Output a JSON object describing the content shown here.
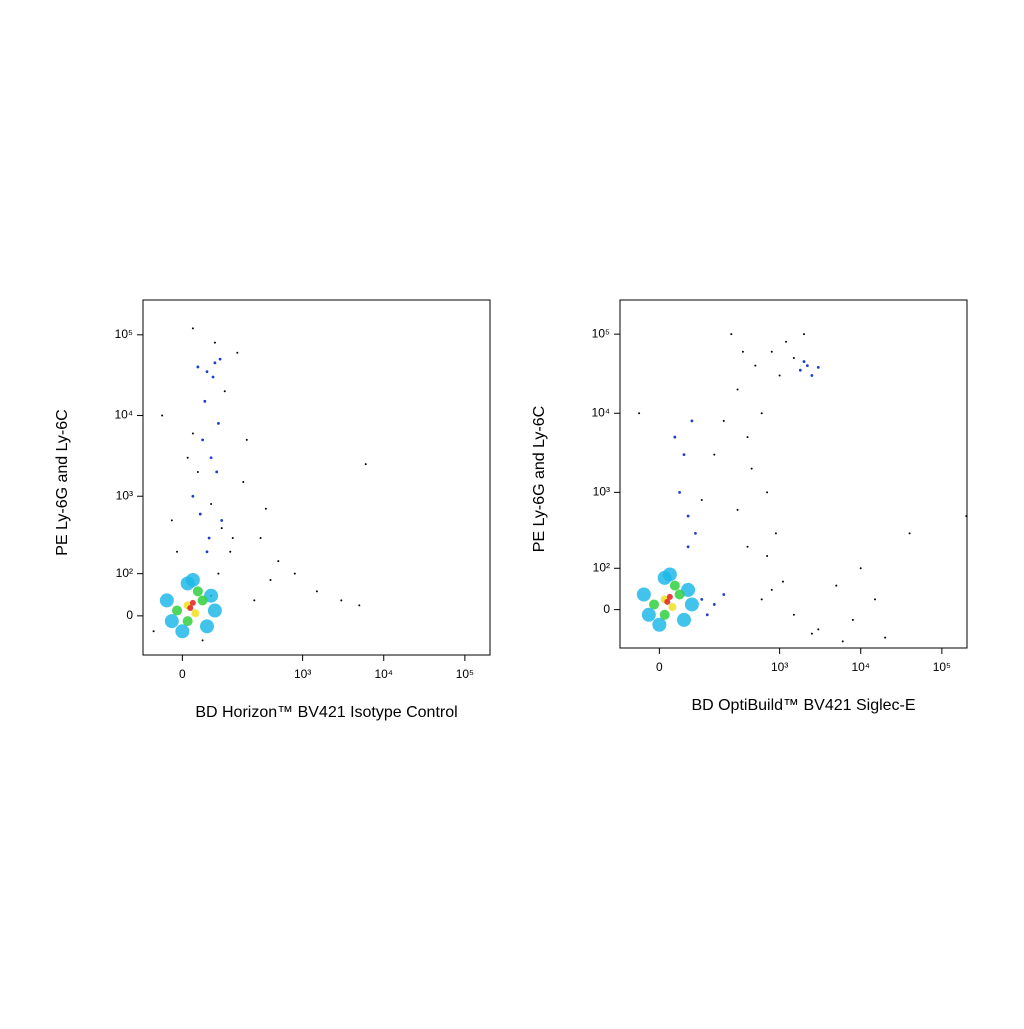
{
  "chart_data": [
    {
      "type": "scatter",
      "xscale": "biexponential",
      "yscale": "biexponential",
      "x_label": "BD Horizon™ BV421 Isotype Control",
      "y_label": "PE Ly-6G and Ly-6C",
      "xlim": [
        -90,
        204000
      ],
      "ylim": [
        -90,
        270000
      ],
      "xticks": [
        0,
        {
          "value": 1000,
          "label": "10³"
        },
        {
          "value": 10000,
          "label": "10⁴"
        },
        {
          "value": 100000,
          "label": "10⁵"
        }
      ],
      "yticks": [
        0,
        {
          "value": 100,
          "label": "10²"
        },
        {
          "value": 1000,
          "label": "10³"
        },
        {
          "value": 10000,
          "label": "10⁴"
        },
        {
          "value": 100000,
          "label": "10⁵"
        }
      ],
      "series": [
        {
          "color": "#000000",
          "x": [
            -40,
            10,
            60,
            120,
            200,
            300,
            500,
            800,
            1500,
            3000,
            6000,
            -20,
            30,
            90,
            150,
            250,
            400,
            20,
            70,
            180,
            350,
            5000,
            -60,
            40,
            100,
            60,
            130,
            20,
            -10,
            80
          ],
          "y": [
            10000,
            3000,
            800,
            200,
            5000,
            300,
            150,
            100,
            50,
            30,
            2500,
            500,
            2000,
            400,
            60000,
            30,
            80,
            120000,
            80000,
            1500,
            700,
            20,
            -30,
            -50,
            20000,
            40,
            300,
            6000,
            200,
            100
          ]
        },
        {
          "color": "#1a3fd0",
          "x": [
            30,
            50,
            70,
            40,
            60,
            80,
            20,
            90,
            55,
            65,
            45,
            75,
            35,
            85,
            50
          ],
          "y": [
            40000,
            35000,
            45000,
            5000,
            3000,
            8000,
            1000,
            500,
            300,
            30000,
            15000,
            2000,
            600,
            50000,
            200
          ]
        },
        {
          "color": "#20b8e8",
          "x": [
            -20,
            60,
            10,
            -30,
            50,
            0,
            70,
            20
          ],
          "y": [
            -10,
            40,
            70,
            30,
            -20,
            -30,
            10,
            80
          ]
        },
        {
          "color": "#30d040",
          "x": [
            -10,
            40,
            10,
            30
          ],
          "y": [
            10,
            30,
            -10,
            50
          ]
        },
        {
          "color": "#f0e020",
          "x": [
            10,
            25
          ],
          "y": [
            20,
            5
          ]
        },
        {
          "color": "#e02020",
          "x": [
            15,
            20
          ],
          "y": [
            15,
            25
          ]
        }
      ]
    },
    {
      "type": "scatter",
      "xscale": "biexponential",
      "yscale": "biexponential",
      "x_label": "BD OptiBuild™ BV421 Siglec-E",
      "y_label": "PE Ly-6G and Ly-6C",
      "xlim": [
        -90,
        204000
      ],
      "ylim": [
        -90,
        270000
      ],
      "xticks": [
        0,
        {
          "value": 1000,
          "label": "10³"
        },
        {
          "value": 10000,
          "label": "10⁴"
        },
        {
          "value": 100000,
          "label": "10⁵"
        }
      ],
      "yticks": [
        0,
        {
          "value": 100,
          "label": "10²"
        },
        {
          "value": 1000,
          "label": "10³"
        },
        {
          "value": 10000,
          "label": "10⁴"
        },
        {
          "value": 100000,
          "label": "10⁵"
        }
      ],
      "series": [
        {
          "color": "#000000",
          "x": [
            300,
            500,
            800,
            1200,
            2000,
            400,
            600,
            1000,
            3000,
            5000,
            15000,
            20000,
            40000,
            8000,
            700,
            900,
            250,
            350,
            450,
            1500,
            10000,
            200000,
            -40,
            100,
            150,
            600,
            800,
            1100,
            1500,
            400,
            300,
            200,
            700,
            2500,
            6000
          ],
          "y": [
            20000,
            40000,
            60000,
            80000,
            100000,
            5000,
            10000,
            30000,
            -40,
            50,
            20,
            -60,
            300,
            -20,
            1000,
            300,
            100000,
            60000,
            2000,
            50000,
            100,
            500,
            10000,
            800,
            3000,
            20,
            40,
            60,
            -10,
            200,
            600,
            8000,
            150,
            -50,
            -70
          ]
        },
        {
          "color": "#1a3fd0",
          "x": [
            1800,
            2200,
            2500,
            2000,
            3000,
            30,
            50,
            70,
            40,
            60,
            80,
            100,
            150,
            200,
            120,
            60
          ],
          "y": [
            35000,
            40000,
            30000,
            45000,
            38000,
            5000,
            3000,
            8000,
            1000,
            500,
            300,
            20,
            10,
            30,
            -10,
            200
          ]
        },
        {
          "color": "#20b8e8",
          "x": [
            -20,
            60,
            10,
            -30,
            50,
            0,
            70,
            20
          ],
          "y": [
            -10,
            40,
            70,
            30,
            -20,
            -30,
            10,
            80
          ]
        },
        {
          "color": "#30d040",
          "x": [
            -10,
            40,
            10,
            30
          ],
          "y": [
            10,
            30,
            -10,
            50
          ]
        },
        {
          "color": "#f0e020",
          "x": [
            10,
            25
          ],
          "y": [
            20,
            5
          ]
        },
        {
          "color": "#e02020",
          "x": [
            15,
            20
          ],
          "y": [
            15,
            25
          ]
        }
      ]
    }
  ]
}
